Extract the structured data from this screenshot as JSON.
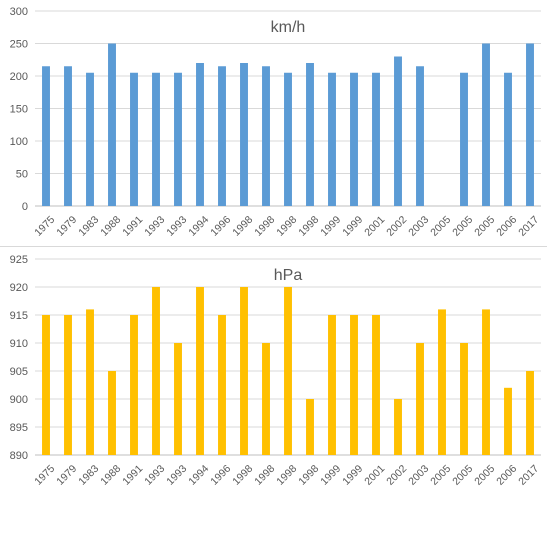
{
  "chart_data": [
    {
      "type": "bar",
      "title": "km/h",
      "categories": [
        "1975",
        "1979",
        "1983",
        "1988",
        "1991",
        "1993",
        "1993",
        "1994",
        "1996",
        "1998",
        "1998",
        "1998",
        "1998",
        "1999",
        "1999",
        "2001",
        "2002",
        "2003",
        "2005",
        "2005",
        "2005",
        "2006",
        "2017"
      ],
      "values": [
        215,
        215,
        205,
        250,
        205,
        205,
        205,
        220,
        215,
        220,
        215,
        205,
        220,
        205,
        205,
        205,
        230,
        215,
        null,
        205,
        250,
        205,
        250
      ],
      "ylim": [
        0,
        300
      ],
      "yticks": [
        0,
        50,
        100,
        150,
        200,
        250,
        300
      ],
      "grid": true,
      "color": "#5b9bd5",
      "xlabel": "",
      "ylabel": ""
    },
    {
      "type": "bar",
      "title": "hPa",
      "categories": [
        "1975",
        "1979",
        "1983",
        "1988",
        "1991",
        "1993",
        "1993",
        "1994",
        "1996",
        "1998",
        "1998",
        "1998",
        "1998",
        "1999",
        "1999",
        "2001",
        "2002",
        "2003",
        "2005",
        "2005",
        "2005",
        "2006",
        "2017"
      ],
      "values": [
        915,
        915,
        916,
        905,
        915,
        920,
        910,
        920,
        915,
        920,
        910,
        920,
        900,
        915,
        915,
        915,
        900,
        910,
        916,
        910,
        916,
        902,
        905
      ],
      "ylim": [
        890,
        925
      ],
      "yticks": [
        890,
        895,
        900,
        905,
        910,
        915,
        920,
        925
      ],
      "grid": true,
      "color": "#ffc000",
      "xlabel": "",
      "ylabel": ""
    }
  ]
}
